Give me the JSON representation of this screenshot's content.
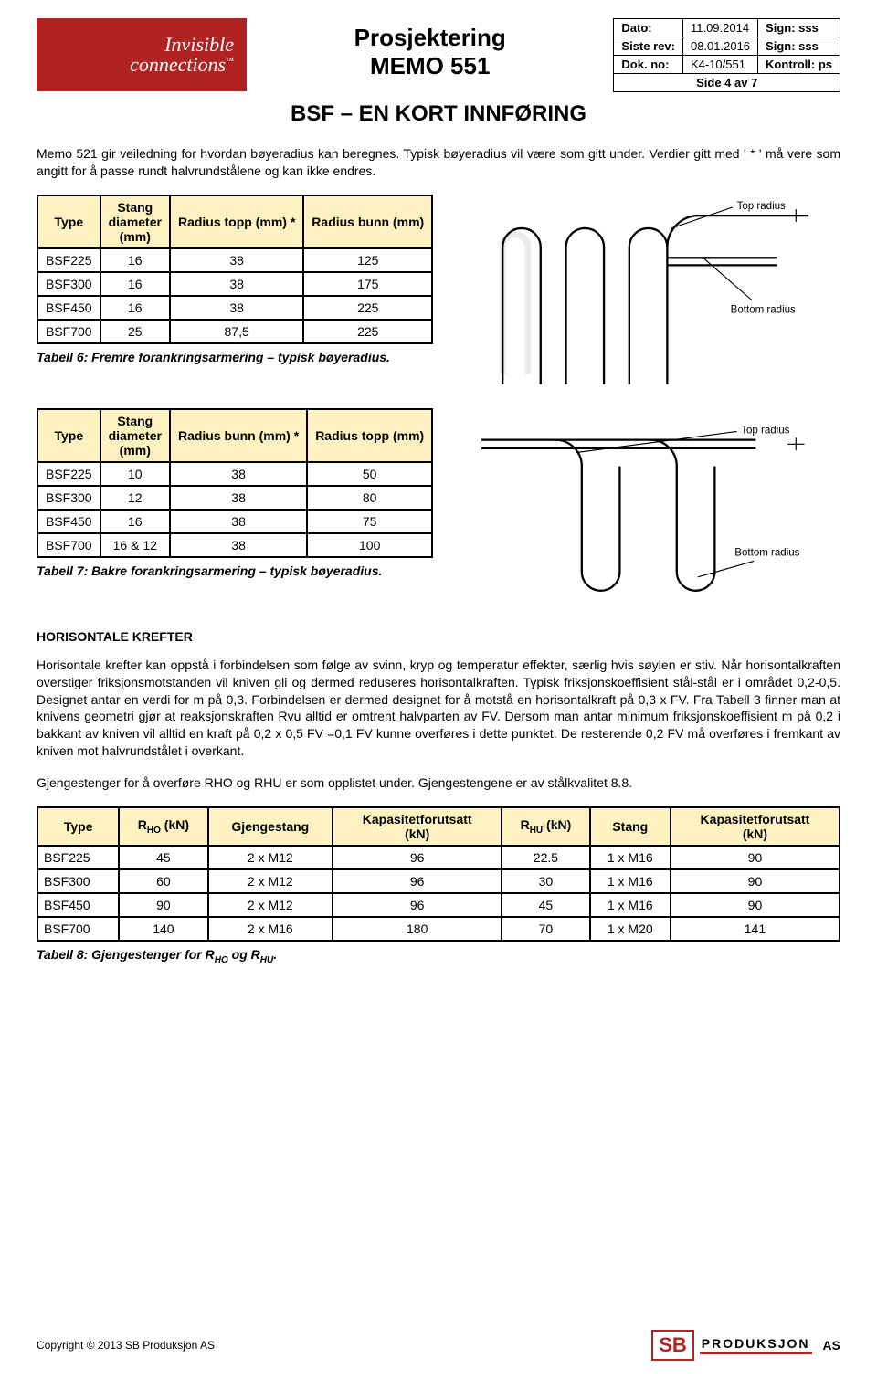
{
  "header": {
    "logo_line1": "Invisible",
    "logo_line2": "connections",
    "logo_tm": "™",
    "title_line1": "Prosjektering",
    "title_line2": "MEMO 551",
    "info": {
      "dato_lbl": "Dato:",
      "dato_val": "11.09.2014",
      "dato_sign_lbl": "Sign:",
      "dato_sign_val": "sss",
      "rev_lbl": "Siste rev:",
      "rev_val": "08.01.2016",
      "rev_sign_lbl": "Sign:",
      "rev_sign_val": "sss",
      "dokno_lbl": "Dok. no:",
      "dokno_val": "K4-10/551",
      "kontroll_lbl": "Kontroll:",
      "kontroll_val": "ps",
      "side": "Side 4 av 7"
    },
    "subtitle": "BSF – EN KORT INNFØRING"
  },
  "intro": "Memo 521 gir veiledning for hvordan bøyeradius kan beregnes. Typisk bøyeradius vil være som gitt under. Verdier gitt med ' * ' må vere som angitt for å passe rundt halvrundstålene og kan ikke endres.",
  "table6": {
    "headers": [
      "Type",
      "Stang diameter (mm)",
      "Radius topp (mm) *",
      "Radius bunn (mm)"
    ],
    "rows": [
      [
        "BSF225",
        "16",
        "38",
        "125"
      ],
      [
        "BSF300",
        "16",
        "38",
        "175"
      ],
      [
        "BSF450",
        "16",
        "38",
        "225"
      ],
      [
        "BSF700",
        "25",
        "87,5",
        "225"
      ]
    ],
    "caption": "Tabell 6: Fremre forankringsarmering – typisk bøyeradius."
  },
  "diagram1": {
    "top_label": "Top radius",
    "bottom_label": "Bottom radius"
  },
  "table7": {
    "headers": [
      "Type",
      "Stang diameter (mm)",
      "Radius bunn (mm) *",
      "Radius topp (mm)"
    ],
    "rows": [
      [
        "BSF225",
        "10",
        "38",
        "50"
      ],
      [
        "BSF300",
        "12",
        "38",
        "80"
      ],
      [
        "BSF450",
        "16",
        "38",
        "75"
      ],
      [
        "BSF700",
        "16 & 12",
        "38",
        "100"
      ]
    ],
    "caption": "Tabell 7: Bakre forankringsarmering – typisk bøyeradius."
  },
  "diagram2": {
    "top_label": "Top radius",
    "bottom_label": "Bottom radius"
  },
  "section_heading": "HORISONTALE KREFTER",
  "para_hor": "Horisontale krefter kan oppstå i forbindelsen som følge av svinn, kryp og temperatur effekter, særlig hvis søylen er stiv. Når horisontalkraften overstiger friksjonsmotstanden vil kniven gli og dermed reduseres horisontalkraften.  Typisk friksjonskoeffisient stål-stål er i området 0,2-0,5. Designet antar en verdi for m på 0,3. Forbindelsen er dermed designet for å motstå en horisontalkraft på 0,3 x FV. Fra Tabell 3 finner man at knivens geometri gjør at reaksjonskraften Rvu alltid er omtrent halvparten av FV. Dersom man antar minimum friksjonskoeffisient m på 0,2 i bakkant av kniven vil alltid en kraft på 0,2 x 0,5 FV =0,1 FV kunne overføres i dette punktet. De resterende 0,2 FV må overføres i fremkant av kniven mot halvrundstålet i overkant.",
  "para_gjenge": "Gjengestenger for å overføre RHO og RHU er som opplistet under. Gjengestengene er av stålkvalitet 8.8.",
  "table8": {
    "headers": [
      "Type",
      "RHO (kN)",
      "Gjengestang",
      "Kapasitetforutsatt (kN)",
      "RHU (kN)",
      "Stang",
      "Kapasitetforutsatt (kN)"
    ],
    "rows": [
      [
        "BSF225",
        "45",
        "2 x M12",
        "96",
        "22.5",
        "1 x M16",
        "90"
      ],
      [
        "BSF300",
        "60",
        "2 x M12",
        "96",
        "30",
        "1 x M16",
        "90"
      ],
      [
        "BSF450",
        "90",
        "2 x M12",
        "96",
        "45",
        "1 x M16",
        "90"
      ],
      [
        "BSF700",
        "140",
        "2 x M16",
        "180",
        "70",
        "1 x M20",
        "141"
      ]
    ],
    "caption_prefix": "Tabell 8: Gjengestenger for R",
    "caption_ho": "HO",
    "caption_mid": " og R",
    "caption_hu": "HU",
    "caption_suffix": "."
  },
  "footer": {
    "copyright": "Copyright © 2013 SB Produksjon AS",
    "sb": "SB",
    "prod": "PRODUKSJON",
    "as": "AS"
  },
  "colors": {
    "logo_bg": "#b22222",
    "table_header_bg": "#fff2c2",
    "border": "#000000"
  }
}
